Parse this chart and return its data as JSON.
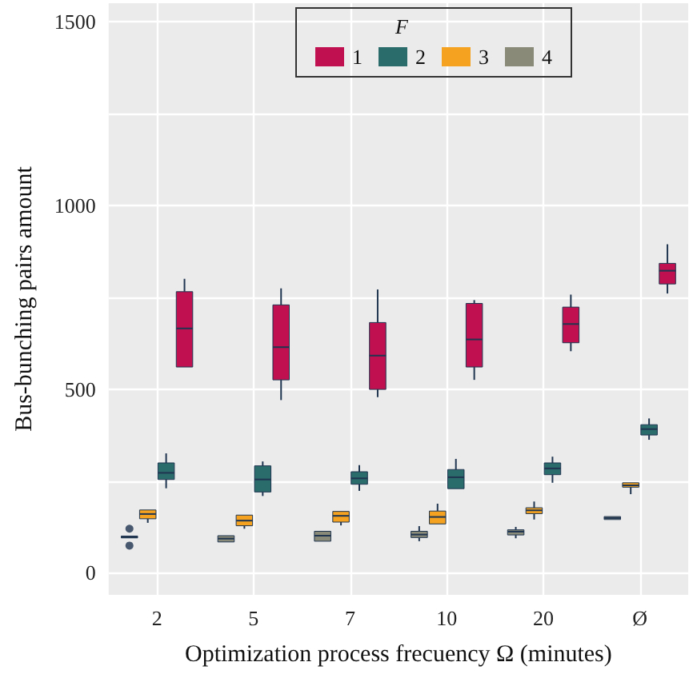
{
  "chart_data": {
    "type": "box",
    "xlabel": "Optimization process frecuency Ω (minutes)",
    "ylabel": "Bus-bunching pairs amount",
    "legend_title": "F",
    "legend": "top",
    "grid": true,
    "categories": [
      "2",
      "5",
      "7",
      "10",
      "20",
      "Ø"
    ],
    "ylim": [
      -60,
      1550
    ],
    "yticks": [
      0,
      {
        "value": 250,
        "label": null
      },
      500,
      {
        "value": 750,
        "label": null
      },
      1000,
      {
        "value": 1250,
        "label": null
      },
      1500
    ],
    "series": [
      {
        "name": "1",
        "color": "#c0104f",
        "boxes": [
          {
            "low": 555,
            "q1": 560,
            "median": 665,
            "q3": 765,
            "high": 800
          },
          {
            "low": 470,
            "q1": 525,
            "median": 614,
            "q3": 729,
            "high": 774
          },
          {
            "low": 478,
            "q1": 499,
            "median": 591,
            "q3": 681,
            "high": 771
          },
          {
            "low": 525,
            "q1": 560,
            "median": 635,
            "q3": 733,
            "high": 742
          },
          {
            "low": 603,
            "q1": 626,
            "median": 677,
            "q3": 723,
            "high": 757
          },
          {
            "low": 760,
            "q1": 786,
            "median": 822,
            "q3": 842,
            "high": 894
          }
        ]
      },
      {
        "name": "2",
        "color": "#2a6b6b",
        "boxes": [
          {
            "low": 230,
            "q1": 254,
            "median": 272,
            "q3": 299,
            "high": 325
          },
          {
            "low": 209,
            "q1": 220,
            "median": 254,
            "q3": 291,
            "high": 303
          },
          {
            "low": 223,
            "q1": 241,
            "median": 257,
            "q3": 275,
            "high": 293
          },
          {
            "low": 223,
            "q1": 229,
            "median": 260,
            "q3": 281,
            "high": 310
          },
          {
            "low": 245,
            "q1": 267,
            "median": 284,
            "q3": 299,
            "high": 316
          },
          {
            "low": 362,
            "q1": 375,
            "median": 391,
            "q3": 403,
            "high": 420
          }
        ]
      },
      {
        "name": "3",
        "color": "#f4a21f",
        "boxes": [
          {
            "low": 136,
            "q1": 147,
            "median": 160,
            "q3": 171,
            "high": 177
          },
          {
            "low": 120,
            "q1": 128,
            "median": 142,
            "q3": 157,
            "high": 162
          },
          {
            "low": 129,
            "q1": 138,
            "median": 155,
            "q3": 167,
            "high": 170
          },
          {
            "low": 127,
            "q1": 133,
            "median": 152,
            "q3": 168,
            "high": 188
          },
          {
            "low": 145,
            "q1": 161,
            "median": 170,
            "q3": 177,
            "high": 194
          },
          {
            "low": 214,
            "q1": 233,
            "median": 238,
            "q3": 245,
            "high": 250
          }
        ]
      },
      {
        "name": "4",
        "color": "#8a8a78",
        "boxes": [
          {
            "low": 93,
            "q1": 95,
            "median": 97,
            "q3": 100,
            "high": 102,
            "outliers": [
              120,
              74
            ]
          },
          {
            "low": 81,
            "q1": 84,
            "median": 93,
            "q3": 101,
            "high": 104
          },
          {
            "low": 81,
            "q1": 86,
            "median": 101,
            "q3": 113,
            "high": 119
          },
          {
            "low": 86,
            "q1": 96,
            "median": 104,
            "q3": 113,
            "high": 127
          },
          {
            "low": 94,
            "q1": 103,
            "median": 112,
            "q3": 117,
            "high": 125
          },
          {
            "low": 143,
            "q1": 145,
            "median": 149,
            "q3": 153,
            "high": 155
          }
        ]
      }
    ]
  }
}
